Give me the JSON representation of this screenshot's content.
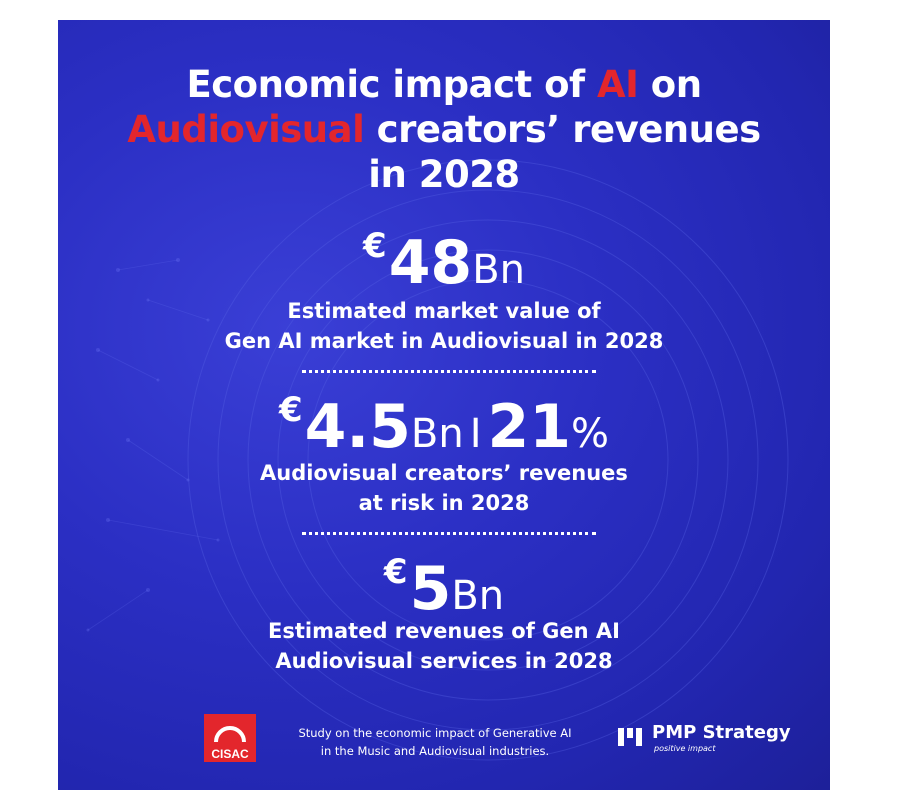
{
  "title": {
    "line1_pre": "Economic impact of ",
    "line1_red": "AI",
    "line1_post": " on",
    "line2_red": "Audiovisual",
    "line2_post": " creators’ revenues",
    "line3": "in 2028"
  },
  "stats": [
    {
      "currency": "€",
      "number": "48",
      "unit": "Bn",
      "desc_line1": "Estimated market value of",
      "desc_line2": "Gen AI market in Audiovisual in 2028"
    },
    {
      "currency": "€",
      "number": "4.5",
      "unit": "Bn",
      "separator": "I",
      "pct_number": "21",
      "pct_symbol": "%",
      "desc_line1": "Audiovisual creators’ revenues",
      "desc_line2": "at risk in 2028"
    },
    {
      "currency": "€",
      "number": "5",
      "unit": "Bn",
      "desc_line1": "Estimated revenues of Gen AI",
      "desc_line2": "Audiovisual services in 2028"
    }
  ],
  "footer": {
    "cisac_label": "CISAC",
    "study_line1": "Study on the economic impact of Generative AI",
    "study_line2": "in the Music and Audiovisual industries.",
    "pmp_name": "PMP Strategy",
    "pmp_tagline": "positive impact"
  },
  "colors": {
    "background": "#2b2fc4",
    "accent_red": "#e3262c",
    "text": "#ffffff"
  }
}
